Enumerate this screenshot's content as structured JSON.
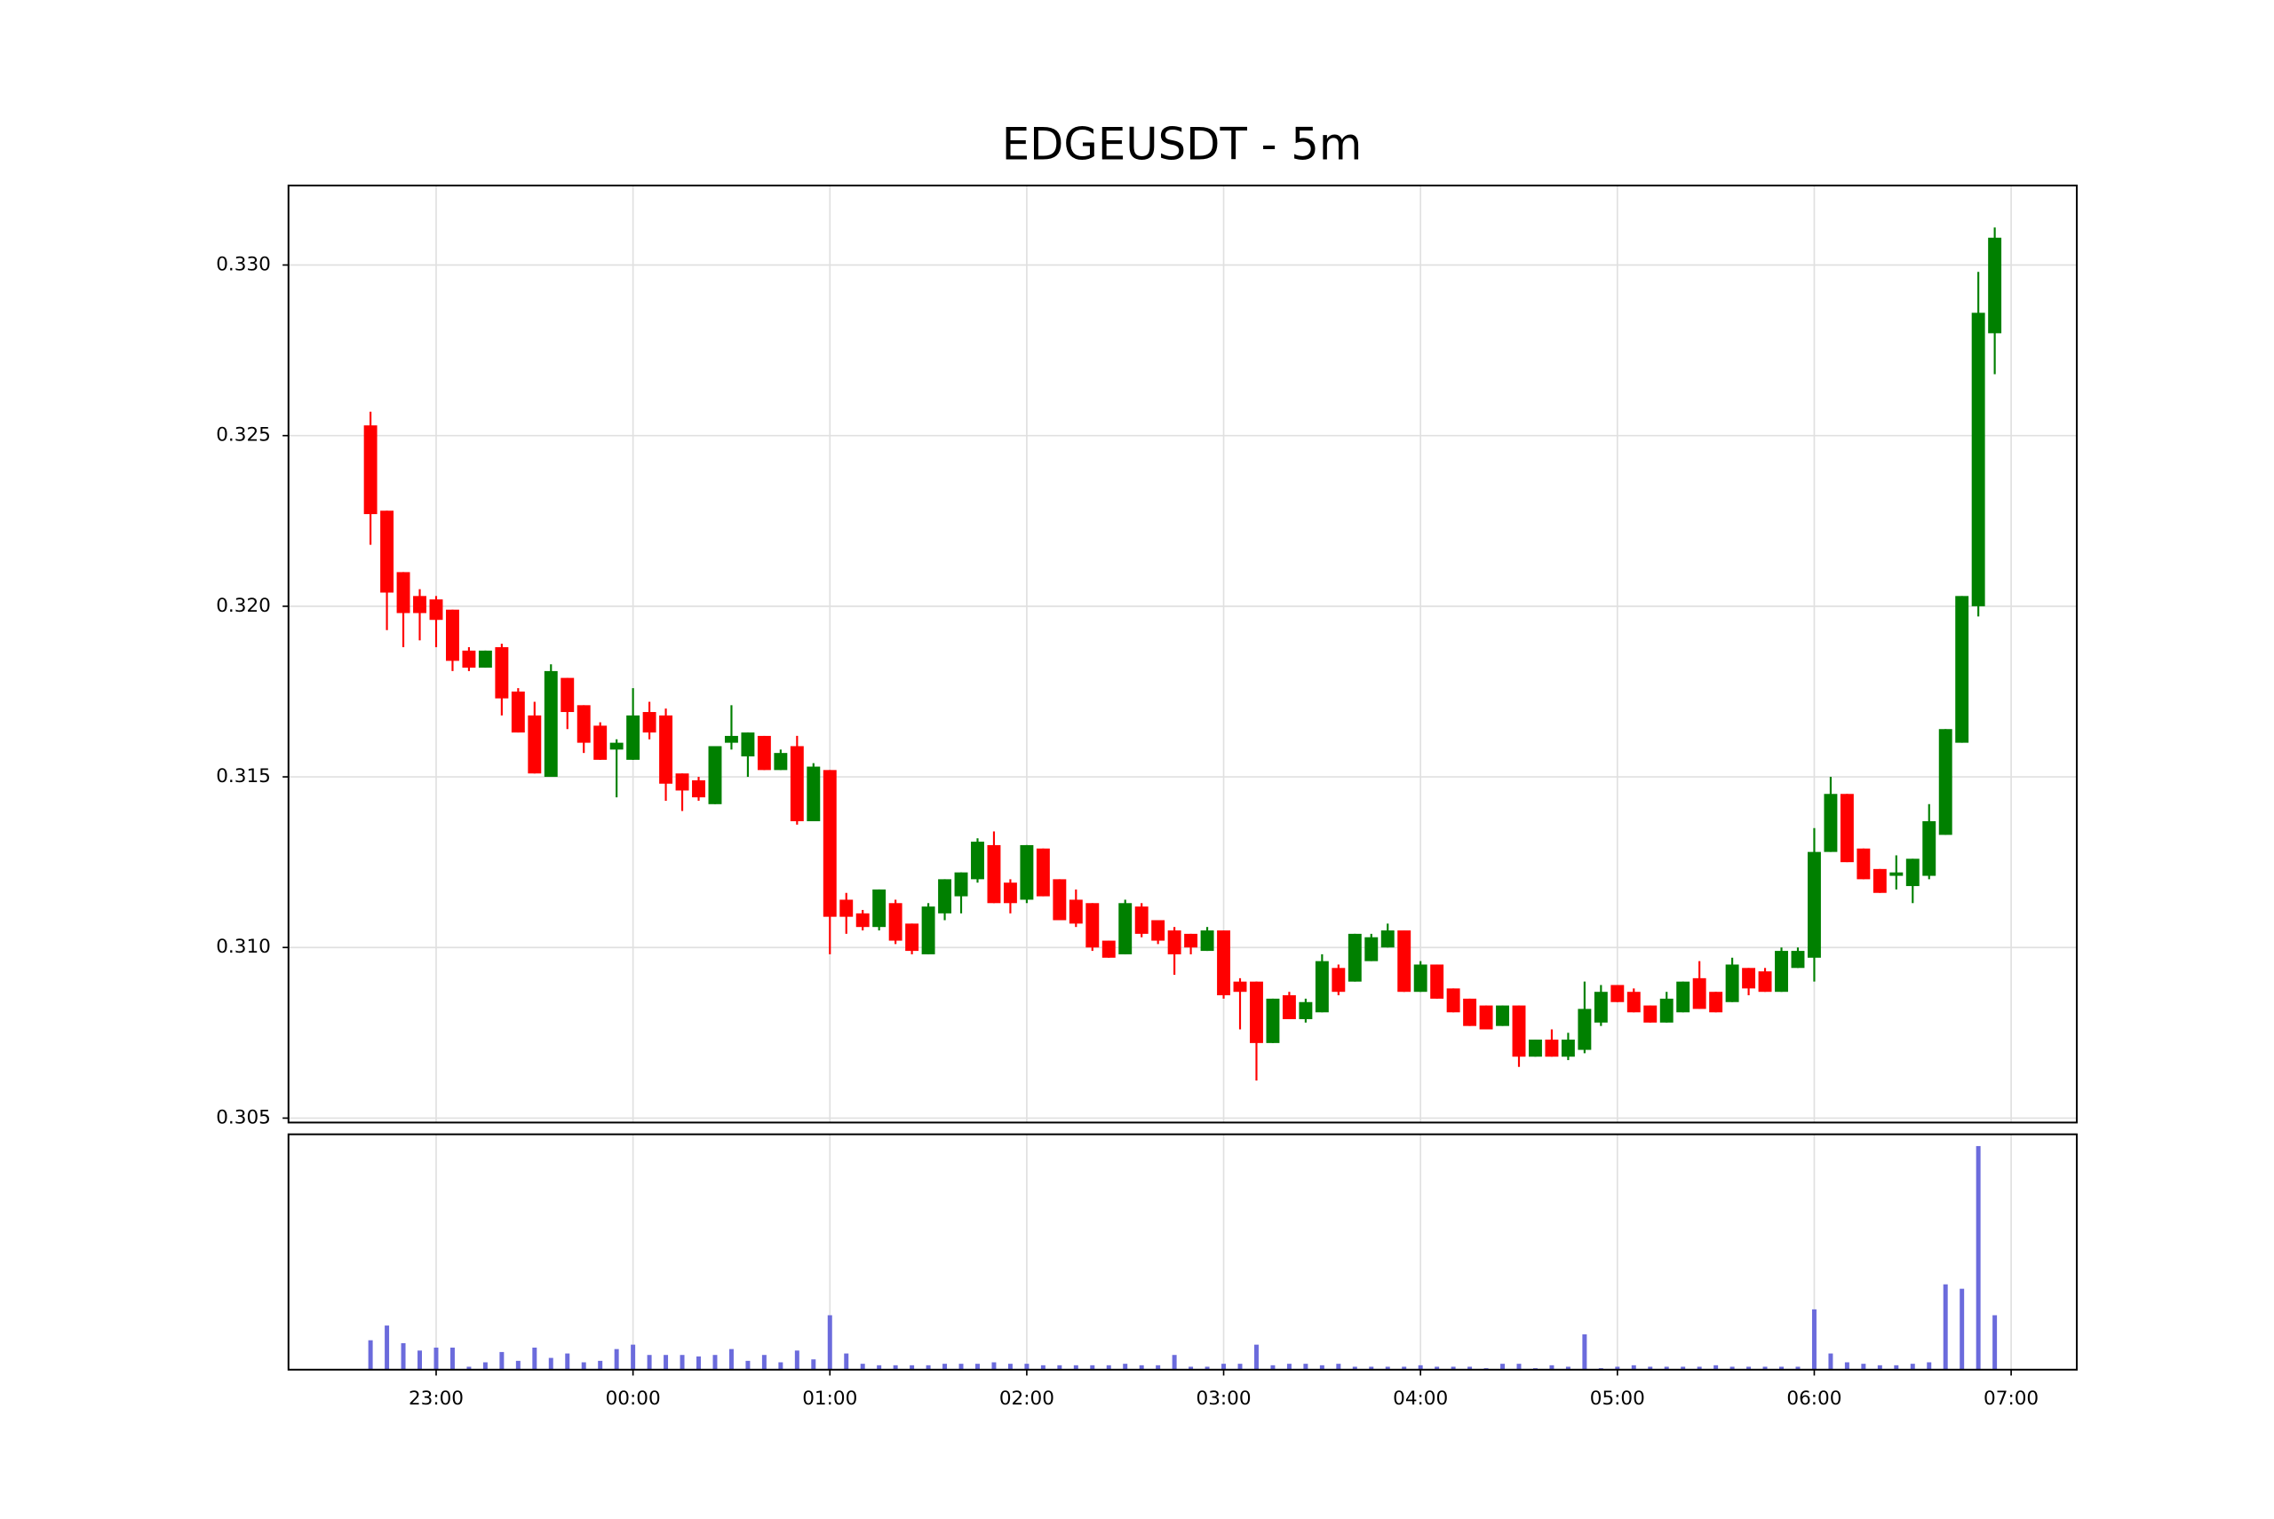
{
  "chart_data": {
    "type": "candlestick",
    "title": "EDGEUSDT - 5m",
    "x": [
      "22:40",
      "22:45",
      "22:50",
      "22:55",
      "23:00",
      "23:05",
      "23:10",
      "23:15",
      "23:20",
      "23:25",
      "23:30",
      "23:35",
      "23:40",
      "23:45",
      "23:50",
      "23:55",
      "00:00",
      "00:05",
      "00:10",
      "00:15",
      "00:20",
      "00:25",
      "00:30",
      "00:35",
      "00:40",
      "00:45",
      "00:50",
      "00:55",
      "01:00",
      "01:05",
      "01:10",
      "01:15",
      "01:20",
      "01:25",
      "01:30",
      "01:35",
      "01:40",
      "01:45",
      "01:50",
      "01:55",
      "02:00",
      "02:05",
      "02:10",
      "02:15",
      "02:20",
      "02:25",
      "02:30",
      "02:35",
      "02:40",
      "02:45",
      "02:50",
      "02:55",
      "03:00",
      "03:05",
      "03:10",
      "03:15",
      "03:20",
      "03:25",
      "03:30",
      "03:35",
      "03:40",
      "03:45",
      "03:50",
      "03:55",
      "04:00",
      "04:05",
      "04:10",
      "04:15",
      "04:20",
      "04:25",
      "04:30",
      "04:35",
      "04:40",
      "04:45",
      "04:50",
      "04:55",
      "05:00",
      "05:05",
      "05:10",
      "05:15",
      "05:20",
      "05:25",
      "05:30",
      "05:35",
      "05:40",
      "05:45",
      "05:50",
      "05:55",
      "06:00",
      "06:05",
      "06:10",
      "06:15",
      "06:20",
      "06:25",
      "06:30",
      "06:35",
      "06:40",
      "06:45",
      "06:50",
      "06:55"
    ],
    "open": [
      0.3253,
      0.3228,
      0.321,
      0.3203,
      0.3202,
      0.3199,
      0.3187,
      0.3182,
      0.3188,
      0.3175,
      0.3168,
      0.315,
      0.3179,
      0.3171,
      0.3165,
      0.3158,
      0.3155,
      0.3169,
      0.3168,
      0.3151,
      0.3149,
      0.3142,
      0.316,
      0.3156,
      0.3162,
      0.3152,
      0.3159,
      0.3137,
      0.3152,
      0.3114,
      0.311,
      0.3106,
      0.3113,
      0.3107,
      0.3098,
      0.311,
      0.3115,
      0.312,
      0.313,
      0.3119,
      0.3114,
      0.3129,
      0.312,
      0.3114,
      0.3113,
      0.3102,
      0.3098,
      0.3112,
      0.3108,
      0.3105,
      0.3104,
      0.3099,
      0.3105,
      0.309,
      0.309,
      0.3072,
      0.3086,
      0.3079,
      0.3081,
      0.3094,
      0.309,
      0.3096,
      0.31,
      0.3105,
      0.3087,
      0.3095,
      0.3088,
      0.3085,
      0.3083,
      0.3077,
      0.3083,
      0.3068,
      0.3073,
      0.3068,
      0.307,
      0.3078,
      0.3089,
      0.3087,
      0.3083,
      0.3078,
      0.3081,
      0.3091,
      0.3087,
      0.3084,
      0.3094,
      0.3093,
      0.3087,
      0.3094,
      0.3097,
      0.3128,
      0.3145,
      0.3129,
      0.3123,
      0.3121,
      0.3118,
      0.3121,
      0.3133,
      0.316,
      0.32,
      0.328
    ],
    "high": [
      0.3257,
      0.3228,
      0.321,
      0.3205,
      0.3203,
      0.3199,
      0.3188,
      0.3187,
      0.3189,
      0.3176,
      0.3172,
      0.3183,
      0.3179,
      0.3171,
      0.3166,
      0.3161,
      0.3176,
      0.3172,
      0.317,
      0.3151,
      0.315,
      0.3159,
      0.3171,
      0.3163,
      0.3162,
      0.3158,
      0.3162,
      0.3154,
      0.3152,
      0.3116,
      0.3111,
      0.3117,
      0.3114,
      0.3107,
      0.3113,
      0.312,
      0.3122,
      0.3132,
      0.3134,
      0.312,
      0.313,
      0.3129,
      0.312,
      0.3117,
      0.3113,
      0.3102,
      0.3114,
      0.3113,
      0.3108,
      0.3106,
      0.3104,
      0.3106,
      0.3105,
      0.3091,
      0.309,
      0.3085,
      0.3087,
      0.3085,
      0.3098,
      0.3095,
      0.3104,
      0.3104,
      0.3107,
      0.3105,
      0.3096,
      0.3095,
      0.3088,
      0.3085,
      0.3083,
      0.3083,
      0.3083,
      0.3073,
      0.3076,
      0.3075,
      0.309,
      0.3089,
      0.3089,
      0.3088,
      0.3083,
      0.3087,
      0.309,
      0.3096,
      0.3087,
      0.3097,
      0.3094,
      0.3094,
      0.31,
      0.31,
      0.3135,
      0.315,
      0.3145,
      0.3129,
      0.3123,
      0.3127,
      0.3126,
      0.3142,
      0.3164,
      0.3203,
      0.3298,
      0.3311
    ],
    "low": [
      0.3218,
      0.3193,
      0.3188,
      0.319,
      0.3188,
      0.3181,
      0.3181,
      0.3182,
      0.3168,
      0.3163,
      0.3151,
      0.315,
      0.3164,
      0.3157,
      0.3155,
      0.3144,
      0.3155,
      0.3161,
      0.3143,
      0.314,
      0.3143,
      0.3142,
      0.3158,
      0.315,
      0.3152,
      0.3152,
      0.3136,
      0.3137,
      0.3098,
      0.3104,
      0.3105,
      0.3105,
      0.3101,
      0.3098,
      0.3098,
      0.3108,
      0.311,
      0.3119,
      0.3113,
      0.311,
      0.3113,
      0.3115,
      0.3108,
      0.3106,
      0.3099,
      0.3097,
      0.3098,
      0.3103,
      0.3101,
      0.3092,
      0.3098,
      0.3099,
      0.3085,
      0.3076,
      0.3061,
      0.3072,
      0.3079,
      0.3078,
      0.3081,
      0.3086,
      0.309,
      0.3096,
      0.31,
      0.3087,
      0.3087,
      0.3085,
      0.3081,
      0.3077,
      0.3076,
      0.3077,
      0.3065,
      0.3068,
      0.3068,
      0.3067,
      0.3069,
      0.3077,
      0.3084,
      0.3081,
      0.3078,
      0.3078,
      0.3081,
      0.3082,
      0.3081,
      0.3084,
      0.3086,
      0.3087,
      0.3087,
      0.3094,
      0.309,
      0.3128,
      0.3125,
      0.312,
      0.3116,
      0.3117,
      0.3113,
      0.312,
      0.3133,
      0.316,
      0.3197,
      0.3268
    ],
    "close": [
      0.3227,
      0.3204,
      0.3198,
      0.3198,
      0.3196,
      0.3184,
      0.3182,
      0.3187,
      0.3173,
      0.3163,
      0.3151,
      0.3181,
      0.3169,
      0.316,
      0.3155,
      0.316,
      0.3168,
      0.3163,
      0.3148,
      0.3146,
      0.3144,
      0.3159,
      0.3162,
      0.3163,
      0.3152,
      0.3157,
      0.3137,
      0.3153,
      0.3109,
      0.3109,
      0.3106,
      0.3117,
      0.3102,
      0.3099,
      0.3112,
      0.312,
      0.3122,
      0.3131,
      0.3113,
      0.3113,
      0.313,
      0.3115,
      0.3108,
      0.3107,
      0.31,
      0.3097,
      0.3113,
      0.3104,
      0.3102,
      0.3098,
      0.31,
      0.3105,
      0.3086,
      0.3087,
      0.3072,
      0.3085,
      0.3079,
      0.3084,
      0.3096,
      0.3087,
      0.3104,
      0.3103,
      0.3105,
      0.3087,
      0.3095,
      0.3085,
      0.3081,
      0.3077,
      0.3076,
      0.3083,
      0.3068,
      0.3073,
      0.3068,
      0.3073,
      0.3082,
      0.3087,
      0.3084,
      0.3081,
      0.3078,
      0.3085,
      0.309,
      0.3082,
      0.3081,
      0.3095,
      0.3088,
      0.3087,
      0.3099,
      0.3099,
      0.3128,
      0.3145,
      0.3125,
      0.312,
      0.3116,
      0.3122,
      0.3126,
      0.3137,
      0.3164,
      0.3203,
      0.3286,
      0.3308
    ],
    "volume": [
      20,
      30,
      18,
      13,
      15,
      15,
      2,
      5,
      12,
      6,
      15,
      8,
      11,
      5,
      6,
      14,
      17,
      10,
      10,
      10,
      9,
      10,
      14,
      6,
      10,
      5,
      13,
      7,
      37,
      11,
      4,
      3,
      3,
      3,
      3,
      4,
      4,
      4,
      5,
      4,
      4,
      3,
      3,
      3,
      3,
      3,
      4,
      3,
      3,
      10,
      2,
      2,
      4,
      4,
      17,
      3,
      4,
      4,
      3,
      4,
      2,
      2,
      2,
      2,
      3,
      2,
      2,
      2,
      1,
      4,
      4,
      1,
      3,
      2,
      24,
      1,
      2,
      3,
      2,
      2,
      2,
      2,
      3,
      2,
      2,
      2,
      2,
      2,
      41,
      11,
      5,
      4,
      3,
      3,
      4,
      5,
      58,
      55,
      152,
      37
    ],
    "up_color": "#008000",
    "down_color": "#ff0000",
    "volume_color": "#6b6bdc",
    "xlim": [
      "22:15",
      "07:20"
    ],
    "xticks": [
      "23:00",
      "00:00",
      "01:00",
      "02:00",
      "03:00",
      "04:00",
      "05:00",
      "06:00",
      "07:00"
    ],
    "ylim": [
      0.30487,
      0.33233
    ],
    "yticks": [
      0.305,
      {
        "value": 0.31,
        "label": "0.310"
      },
      0.315,
      {
        "value": 0.32,
        "label": "0.320"
      },
      0.325,
      {
        "value": 0.33,
        "label": "0.330"
      }
    ],
    "volume_ylim": [
      0,
      160
    ],
    "grid": true
  }
}
